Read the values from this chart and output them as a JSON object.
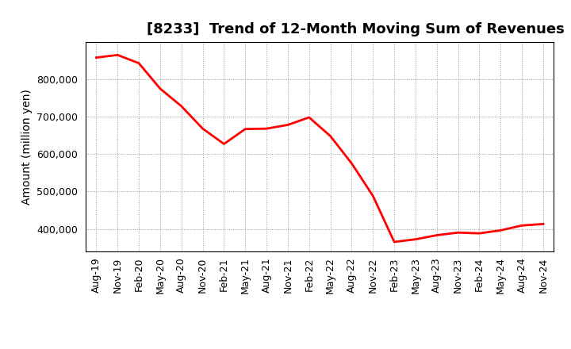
{
  "title": "[8233]  Trend of 12-Month Moving Sum of Revenues",
  "ylabel": "Amount (million yen)",
  "line_color": "#ff0000",
  "line_width": 2.0,
  "background_color": "#ffffff",
  "grid_color": "#999999",
  "x_labels": [
    "Aug-19",
    "Nov-19",
    "Feb-20",
    "May-20",
    "Aug-20",
    "Nov-20",
    "Feb-21",
    "May-21",
    "Aug-21",
    "Nov-21",
    "Feb-22",
    "May-22",
    "Aug-22",
    "Nov-22",
    "Feb-23",
    "May-23",
    "Aug-23",
    "Nov-23",
    "Feb-24",
    "May-24",
    "Aug-24",
    "Nov-24"
  ],
  "y_values": [
    858000,
    865000,
    843000,
    775000,
    728000,
    668000,
    627000,
    667000,
    668000,
    678000,
    698000,
    648000,
    575000,
    488000,
    365000,
    372000,
    383000,
    390000,
    388000,
    396000,
    409000,
    413000
  ],
  "ylim": [
    340000,
    900000
  ],
  "yticks": [
    400000,
    500000,
    600000,
    700000,
    800000
  ],
  "title_fontsize": 13,
  "axis_fontsize": 10,
  "tick_fontsize": 9
}
